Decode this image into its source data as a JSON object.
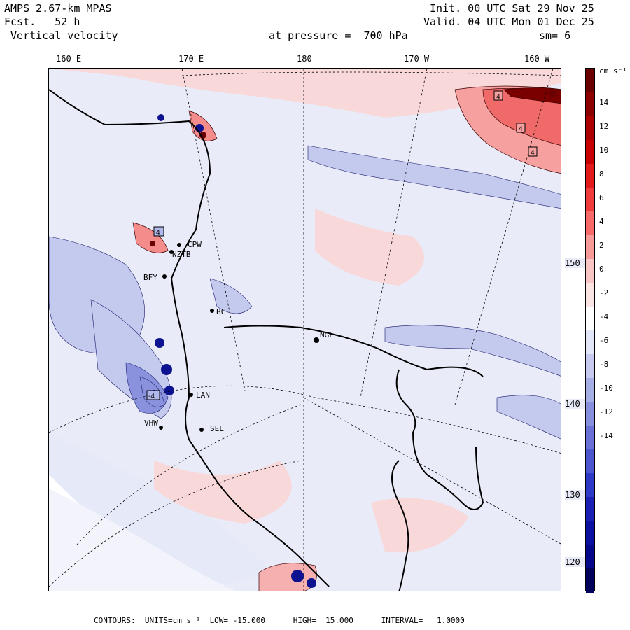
{
  "header": {
    "line1_left": "AMPS 2.67-km MPAS",
    "line2_left": "Fcst.   52 h",
    "line3_left": " Vertical velocity",
    "line1_right": "Init. 00 UTC Sat 29 Nov 25",
    "line2_right": "Valid. 04 UTC Mon 01 Dec 25",
    "pressure": "at pressure =  700 hPa",
    "smooth": "sm= 6"
  },
  "lon_labels": [
    "160 E",
    "170 E",
    "180",
    "170 W",
    "160 W"
  ],
  "lat_labels": [
    "150 W",
    "140 W",
    "130 W",
    "120 W"
  ],
  "stations": [
    "CPW",
    "NZTB",
    "BFY",
    "BC",
    "NGL",
    "LAN",
    "SEL",
    "VHW"
  ],
  "contour_markers": [
    "4",
    "4",
    "4",
    "4",
    "-4"
  ],
  "colorbar": {
    "units": "cm s⁻¹",
    "labels": [
      "14",
      "12",
      "10",
      "8",
      "6",
      "4",
      "2",
      "0",
      "-2",
      "-4",
      "-6",
      "-8",
      "-10",
      "-12",
      "-14"
    ],
    "colors": [
      "#6b0000",
      "#8c0000",
      "#ad0000",
      "#c80000",
      "#e31a1a",
      "#f03c3c",
      "#f76a6a",
      "#f79a9a",
      "#f8c4c4",
      "#fbe4e4",
      "#ffffff",
      "#e3e6f6",
      "#c5caee",
      "#a6aee6",
      "#8890de",
      "#6a72d6",
      "#4c56ce",
      "#2e3ac6",
      "#1a20b4",
      "#0c12a0",
      "#06088a",
      "#02025a"
    ]
  },
  "footer": "CONTOURS:  UNITS=cm s⁻¹  LOW= -15.000      HIGH=  15.000      INTERVAL=   1.0000"
}
